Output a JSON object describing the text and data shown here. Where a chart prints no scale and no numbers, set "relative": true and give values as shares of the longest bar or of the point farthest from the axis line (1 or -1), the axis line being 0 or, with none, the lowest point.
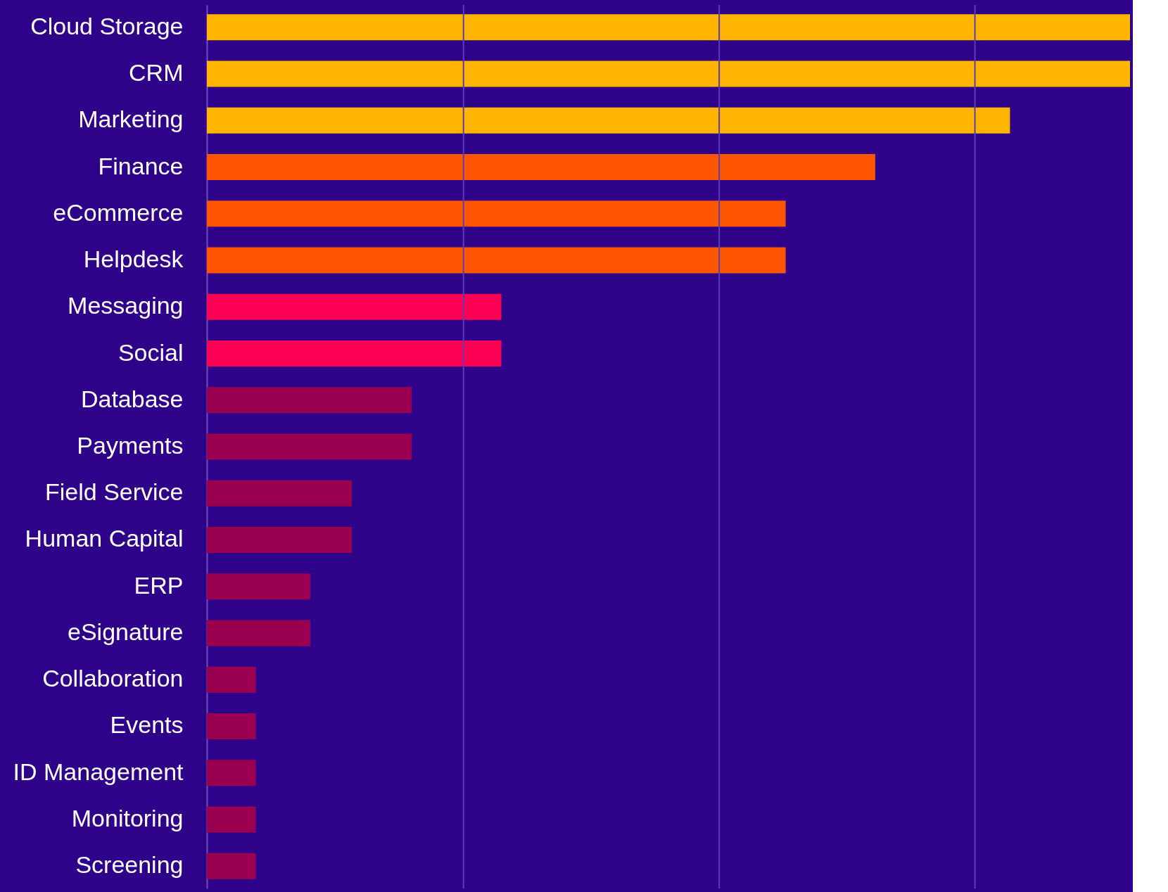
{
  "chart_data": {
    "type": "bar",
    "orientation": "horizontal",
    "relative": true,
    "categories": [
      "Cloud Storage",
      "CRM",
      "Marketing",
      "Finance",
      "eCommerce",
      "Helpdesk",
      "Messaging",
      "Social",
      "Database",
      "Payments",
      "Field Service",
      "Human Capital",
      "ERP",
      "eSignature",
      "Collaboration",
      "Events",
      "ID Management",
      "Monitoring",
      "Screening"
    ],
    "values": [
      1.0,
      1.0,
      0.87,
      0.724,
      0.627,
      0.627,
      0.319,
      0.319,
      0.222,
      0.222,
      0.157,
      0.157,
      0.112,
      0.112,
      0.053,
      0.053,
      0.053,
      0.053,
      0.053
    ],
    "colors": [
      "#ffb400",
      "#ffb400",
      "#ffb400",
      "#ff5500",
      "#ff5500",
      "#ff5500",
      "#ff0055",
      "#ff0055",
      "#9b0050",
      "#9b0050",
      "#9b0050",
      "#9b0050",
      "#9b0050",
      "#9b0050",
      "#9b0050",
      "#9b0050",
      "#9b0050",
      "#9b0050",
      "#9b0050"
    ],
    "ref_lines": [
      {
        "axis": "x",
        "value": 0.278,
        "color": "#5a3db5"
      },
      {
        "axis": "x",
        "value": 0.555,
        "color": "#5a3db5"
      },
      {
        "axis": "x",
        "value": 0.832,
        "color": "#5a3db5"
      }
    ]
  }
}
